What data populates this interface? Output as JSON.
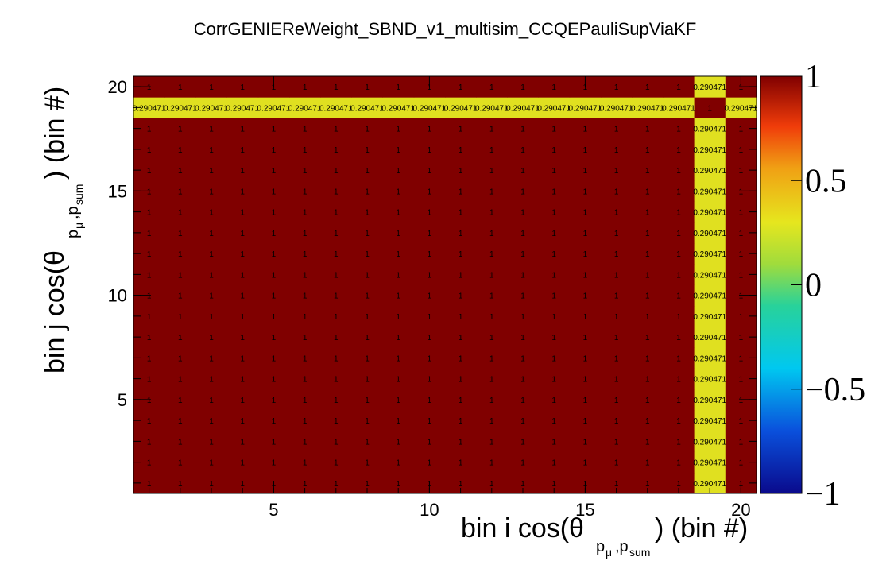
{
  "chart_data": {
    "type": "heatmap",
    "title": "CorrGENIEReWeight_SBND_v1_multisim_CCQEPauliSupViaKF",
    "xlabel": "bin i cos(θ p→μ,p→sum ) (bin #)",
    "ylabel": "bin j cos(θ p→μ,p→sum ) (bin #)",
    "x_bins": [
      1,
      20
    ],
    "y_bins": [
      1,
      20
    ],
    "x_ticks": [
      "5",
      "10",
      "15",
      "20"
    ],
    "y_ticks": [
      "5",
      "10",
      "15",
      "20"
    ],
    "z_range": [
      -1,
      1
    ],
    "z_ticks": [
      "1",
      "0.5",
      "0",
      "−0.5",
      "−1"
    ],
    "special_bin": 19,
    "default_value": 1,
    "default_label": "1",
    "special_value": 0.290471,
    "special_label": "0.290471",
    "diagonal_special_label": "1",
    "colors": {
      "high": "#800000",
      "special": "#e0e020"
    }
  }
}
